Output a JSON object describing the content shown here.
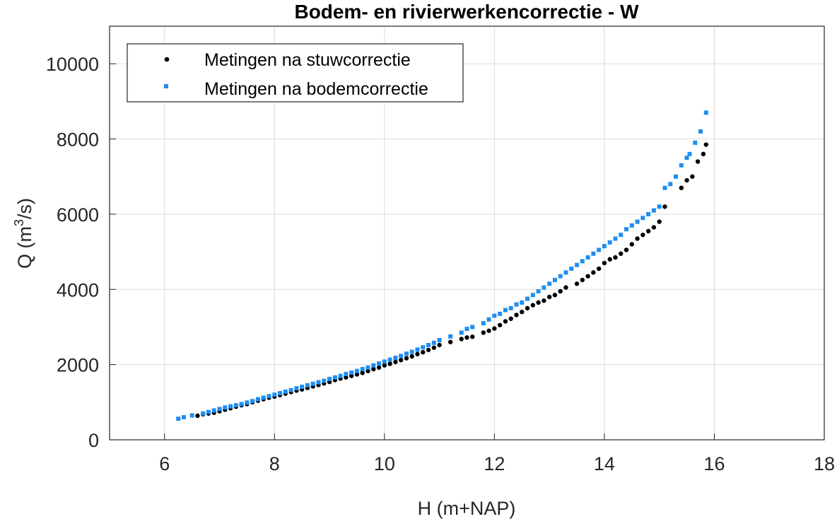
{
  "chart_data": {
    "type": "scatter",
    "title": "Bodem- en rivierwerkencorrectie - W",
    "xlabel": "H (m+NAP)",
    "ylabel": {
      "prefix": "Q (m",
      "superscript": "3",
      "suffix": "/s)"
    },
    "xlim": [
      5,
      18
    ],
    "ylim": [
      0,
      11000
    ],
    "xticks": [
      6,
      8,
      10,
      12,
      14,
      16,
      18
    ],
    "yticks": [
      0,
      2000,
      4000,
      6000,
      8000,
      10000
    ],
    "grid": true,
    "legend_position": "top-left",
    "series": [
      {
        "name": "Metingen na stuwcorrectie",
        "color": "#000000",
        "marker": "dot",
        "x": [
          6.6,
          6.7,
          6.8,
          6.9,
          7.0,
          7.1,
          7.2,
          7.3,
          7.4,
          7.5,
          7.6,
          7.7,
          7.8,
          7.9,
          8.0,
          8.1,
          8.2,
          8.3,
          8.4,
          8.5,
          8.6,
          8.7,
          8.8,
          8.9,
          9.0,
          9.1,
          9.2,
          9.3,
          9.4,
          9.5,
          9.6,
          9.7,
          9.8,
          9.9,
          10.0,
          10.1,
          10.2,
          10.3,
          10.4,
          10.5,
          10.6,
          10.7,
          10.8,
          10.9,
          11.0,
          11.2,
          11.4,
          11.5,
          11.6,
          11.8,
          11.9,
          12.0,
          12.1,
          12.2,
          12.3,
          12.4,
          12.5,
          12.6,
          12.7,
          12.8,
          12.9,
          13.0,
          13.1,
          13.2,
          13.3,
          13.5,
          13.6,
          13.7,
          13.8,
          13.9,
          14.0,
          14.1,
          14.2,
          14.3,
          14.4,
          14.5,
          14.6,
          14.7,
          14.8,
          14.9,
          15.0,
          15.1,
          15.4,
          15.5,
          15.6,
          15.7,
          15.8,
          15.85
        ],
        "y": [
          640,
          680,
          700,
          720,
          760,
          800,
          840,
          880,
          920,
          950,
          1000,
          1040,
          1080,
          1120,
          1150,
          1190,
          1230,
          1270,
          1310,
          1340,
          1380,
          1420,
          1460,
          1500,
          1540,
          1590,
          1630,
          1660,
          1700,
          1740,
          1780,
          1830,
          1880,
          1920,
          1980,
          2020,
          2070,
          2120,
          2170,
          2220,
          2280,
          2330,
          2390,
          2450,
          2520,
          2600,
          2680,
          2720,
          2740,
          2850,
          2900,
          2960,
          3050,
          3150,
          3220,
          3320,
          3400,
          3500,
          3580,
          3650,
          3700,
          3800,
          3850,
          3950,
          4050,
          4150,
          4250,
          4350,
          4450,
          4550,
          4700,
          4800,
          4850,
          4950,
          5050,
          5200,
          5350,
          5450,
          5550,
          5650,
          5800,
          6200,
          6700,
          6900,
          7000,
          7400,
          7600,
          7850
        ]
      },
      {
        "name": "Metingen na bodemcorrectie",
        "color": "#1f8ef1",
        "marker": "square",
        "x": [
          6.25,
          6.35,
          6.5,
          6.7,
          6.8,
          6.9,
          7.0,
          7.1,
          7.2,
          7.3,
          7.4,
          7.5,
          7.6,
          7.7,
          7.8,
          7.9,
          8.0,
          8.1,
          8.2,
          8.3,
          8.4,
          8.5,
          8.6,
          8.7,
          8.8,
          8.9,
          9.0,
          9.1,
          9.2,
          9.3,
          9.4,
          9.5,
          9.6,
          9.7,
          9.8,
          9.9,
          10.0,
          10.1,
          10.2,
          10.3,
          10.4,
          10.5,
          10.6,
          10.7,
          10.8,
          10.9,
          11.0,
          11.2,
          11.4,
          11.5,
          11.6,
          11.8,
          11.9,
          12.0,
          12.1,
          12.2,
          12.3,
          12.4,
          12.5,
          12.6,
          12.7,
          12.8,
          12.9,
          13.0,
          13.1,
          13.2,
          13.3,
          13.4,
          13.5,
          13.6,
          13.7,
          13.8,
          13.9,
          14.0,
          14.1,
          14.2,
          14.3,
          14.4,
          14.5,
          14.6,
          14.7,
          14.8,
          14.9,
          15.0,
          15.1,
          15.2,
          15.3,
          15.4,
          15.5,
          15.55,
          15.65,
          15.75,
          15.85
        ],
        "y": [
          560,
          600,
          650,
          700,
          740,
          780,
          820,
          860,
          890,
          920,
          950,
          990,
          1030,
          1080,
          1120,
          1160,
          1200,
          1240,
          1280,
          1320,
          1370,
          1410,
          1450,
          1490,
          1530,
          1570,
          1620,
          1660,
          1700,
          1750,
          1790,
          1830,
          1880,
          1920,
          1980,
          2030,
          2080,
          2130,
          2180,
          2230,
          2290,
          2340,
          2400,
          2460,
          2520,
          2580,
          2650,
          2750,
          2850,
          2950,
          3000,
          3100,
          3200,
          3300,
          3350,
          3450,
          3500,
          3600,
          3650,
          3750,
          3850,
          3950,
          4050,
          4150,
          4250,
          4350,
          4450,
          4550,
          4650,
          4750,
          4850,
          4950,
          5050,
          5150,
          5250,
          5350,
          5450,
          5600,
          5700,
          5800,
          5900,
          6000,
          6100,
          6200,
          6700,
          6800,
          7000,
          7300,
          7500,
          7600,
          7900,
          8200,
          8700
        ]
      }
    ]
  }
}
